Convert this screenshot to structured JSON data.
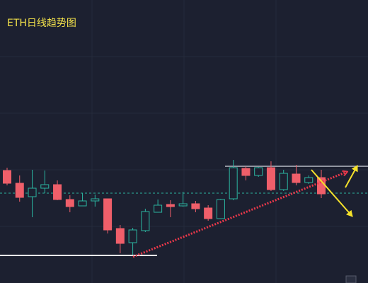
{
  "chart_data": {
    "type": "candlestick",
    "title": "ETH日线趋势图",
    "up_color": "#2bb5a0",
    "down_color": "#ef5f6a",
    "ylim": [
      0,
      400
    ],
    "candles": [
      {
        "open": 159,
        "high": 163,
        "low": 138,
        "close": 141
      },
      {
        "open": 141,
        "high": 152,
        "low": 115,
        "close": 121
      },
      {
        "open": 122,
        "high": 160,
        "low": 93,
        "close": 134
      },
      {
        "open": 134,
        "high": 159,
        "low": 127,
        "close": 139
      },
      {
        "open": 139,
        "high": 145,
        "low": 117,
        "close": 118
      },
      {
        "open": 118,
        "high": 124,
        "low": 100,
        "close": 108
      },
      {
        "open": 109,
        "high": 127,
        "low": 109,
        "close": 116
      },
      {
        "open": 116,
        "high": 125,
        "low": 108,
        "close": 119
      },
      {
        "open": 119,
        "high": 119,
        "low": 70,
        "close": 75
      },
      {
        "open": 77,
        "high": 82,
        "low": 42,
        "close": 56
      },
      {
        "open": 57,
        "high": 78,
        "low": 40,
        "close": 75
      },
      {
        "open": 74,
        "high": 105,
        "low": 72,
        "close": 101
      },
      {
        "open": 100,
        "high": 118,
        "low": 100,
        "close": 110
      },
      {
        "open": 111,
        "high": 117,
        "low": 93,
        "close": 108
      },
      {
        "open": 109,
        "high": 129,
        "low": 108,
        "close": 112
      },
      {
        "open": 112,
        "high": 116,
        "low": 100,
        "close": 105
      },
      {
        "open": 106,
        "high": 110,
        "low": 88,
        "close": 91
      },
      {
        "open": 91,
        "high": 119,
        "low": 91,
        "close": 118
      },
      {
        "open": 119,
        "high": 174,
        "low": 117,
        "close": 163
      },
      {
        "open": 162,
        "high": 165,
        "low": 145,
        "close": 152
      },
      {
        "open": 152,
        "high": 164,
        "low": 150,
        "close": 163
      },
      {
        "open": 163,
        "high": 172,
        "low": 130,
        "close": 132
      },
      {
        "open": 132,
        "high": 160,
        "low": 130,
        "close": 155
      },
      {
        "open": 154,
        "high": 167,
        "low": 138,
        "close": 142
      },
      {
        "open": 142,
        "high": 152,
        "low": 140,
        "close": 149
      },
      {
        "open": 149,
        "high": 160,
        "low": 120,
        "close": 126
      }
    ]
  }
}
